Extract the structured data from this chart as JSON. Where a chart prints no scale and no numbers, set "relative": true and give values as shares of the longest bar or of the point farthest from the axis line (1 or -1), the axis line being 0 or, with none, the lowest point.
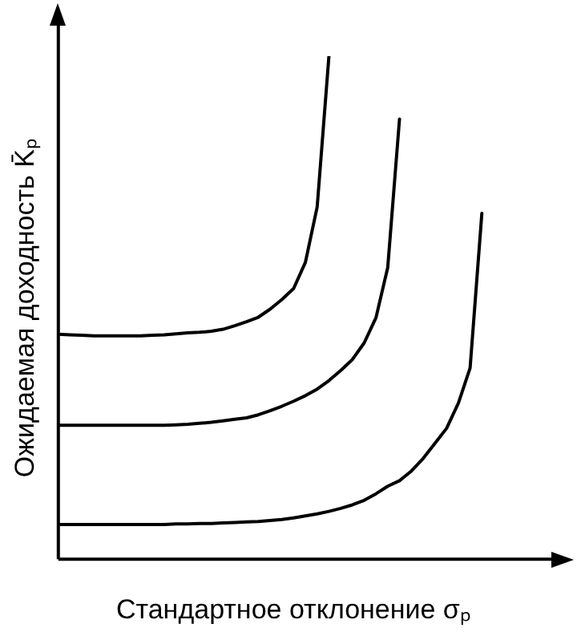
{
  "chart_data": {
    "type": "line",
    "relative": true,
    "xlabel": "Стандартное отклонение σₚ",
    "ylabel": "Ожидаемая доходность K̄ₚ",
    "marker": "none",
    "line_style": "solid",
    "grid": false,
    "legend": false,
    "categories": [
      null,
      null,
      null,
      null,
      null,
      null,
      null,
      null,
      null,
      null,
      null,
      null,
      null,
      null,
      null,
      null,
      null,
      null,
      null,
      null,
      null,
      null,
      null,
      null,
      null,
      null,
      null,
      null,
      null,
      null,
      null,
      null,
      null,
      null,
      null,
      null,
      null,
      null,
      null,
      null,
      null
    ],
    "series": [
      {
        "color": "#000000",
        "values": [
          0.447,
          0.446,
          0.445,
          0.444,
          0.444,
          0.444,
          0.444,
          0.444,
          0.445,
          0.446,
          0.448,
          0.45,
          0.451,
          0.453,
          0.457,
          0.464,
          0.472,
          0.481,
          0.497,
          0.516,
          0.538,
          0.59,
          0.7,
          1,
          null,
          null,
          null,
          null,
          null,
          null,
          null,
          null,
          null,
          null,
          null,
          null,
          null,
          null,
          null,
          null,
          null
        ]
      },
      {
        "color": "#000000",
        "values": [
          0.266,
          0.266,
          0.266,
          0.266,
          0.266,
          0.266,
          0.266,
          0.266,
          0.266,
          0.266,
          0.267,
          0.268,
          0.27,
          0.272,
          0.275,
          0.278,
          0.281,
          0.287,
          0.295,
          0.304,
          0.314,
          0.325,
          0.338,
          0.355,
          0.375,
          0.397,
          0.43,
          0.48,
          0.58,
          0.875,
          null,
          null,
          null,
          null,
          null,
          null,
          null,
          null,
          null,
          null,
          null
        ]
      },
      {
        "color": "#000000",
        "values": [
          0.069,
          0.069,
          0.069,
          0.069,
          0.069,
          0.069,
          0.069,
          0.069,
          0.069,
          0.069,
          0.07,
          0.07,
          0.071,
          0.071,
          0.072,
          0.073,
          0.074,
          0.075,
          0.077,
          0.079,
          0.082,
          0.086,
          0.09,
          0.095,
          0.101,
          0.108,
          0.117,
          0.13,
          0.145,
          0.156,
          0.175,
          0.2,
          0.23,
          0.26,
          0.31,
          0.38,
          0.6875,
          null,
          null,
          null,
          null
        ]
      }
    ]
  }
}
